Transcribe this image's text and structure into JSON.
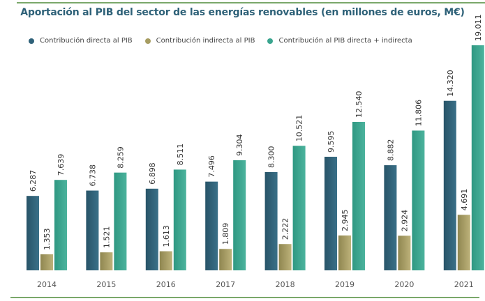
{
  "chart_data": {
    "type": "bar",
    "title": "Aportación al PIB del sector de las energías renovables (en millones de euros, M€)",
    "xlabel": "",
    "ylabel": "",
    "categories": [
      "2014",
      "2015",
      "2016",
      "2017",
      "2018",
      "2019",
      "2020",
      "2021"
    ],
    "series": [
      {
        "name": "Contribución directa al PIB",
        "color": "#2f6179",
        "values": [
          6287,
          6738,
          6898,
          7496,
          8300,
          9595,
          8882,
          14320
        ],
        "labels": [
          "6.287",
          "6.738",
          "6.898",
          "7.496",
          "8.300",
          "9.595",
          "8.882",
          "14.320"
        ]
      },
      {
        "name": "Contribución indirecta al PIB",
        "color": "#a79d62",
        "values": [
          1353,
          1521,
          1613,
          1809,
          2222,
          2945,
          2924,
          4691
        ],
        "labels": [
          "1.353",
          "1.521",
          "1.613",
          "1.809",
          "2.222",
          "2.945",
          "2.924",
          "4.691"
        ]
      },
      {
        "name": "Contribución al PIB directa + indirecta",
        "color": "#3aa58f",
        "values": [
          7639,
          8259,
          8511,
          9304,
          10521,
          12540,
          11806,
          19011
        ],
        "labels": [
          "7.639",
          "8.259",
          "8.511",
          "9.304",
          "10.521",
          "12.540",
          "11.806",
          "19.011"
        ]
      }
    ],
    "ylim": [
      0,
      19011
    ],
    "grid": false,
    "legend_position": "top-left",
    "data_labels": "rotated-vertical"
  }
}
